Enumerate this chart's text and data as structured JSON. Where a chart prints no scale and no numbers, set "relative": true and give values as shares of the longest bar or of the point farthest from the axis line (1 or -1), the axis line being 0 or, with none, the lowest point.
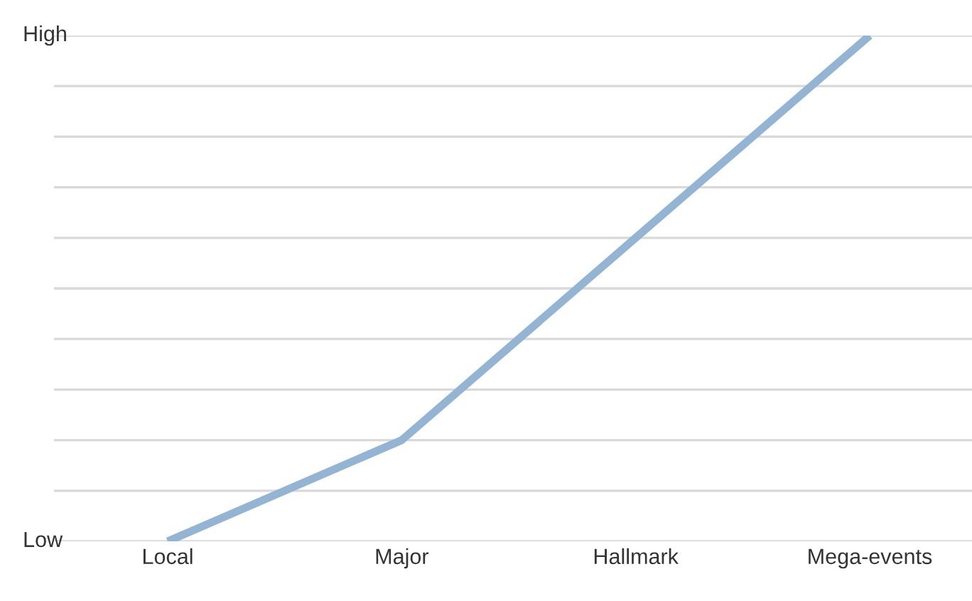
{
  "chart_data": {
    "type": "line",
    "categories": [
      "Local",
      "Major",
      "Hallmark",
      "Mega-events"
    ],
    "series": [
      {
        "color": "#93b4d3",
        "values": [
          0,
          0.2,
          0.6,
          1.0
        ]
      }
    ],
    "relative": true,
    "annotations": [
      "Low",
      "High"
    ],
    "grid": "y",
    "legend": false,
    "marker": "none",
    "line_style": "solid"
  }
}
